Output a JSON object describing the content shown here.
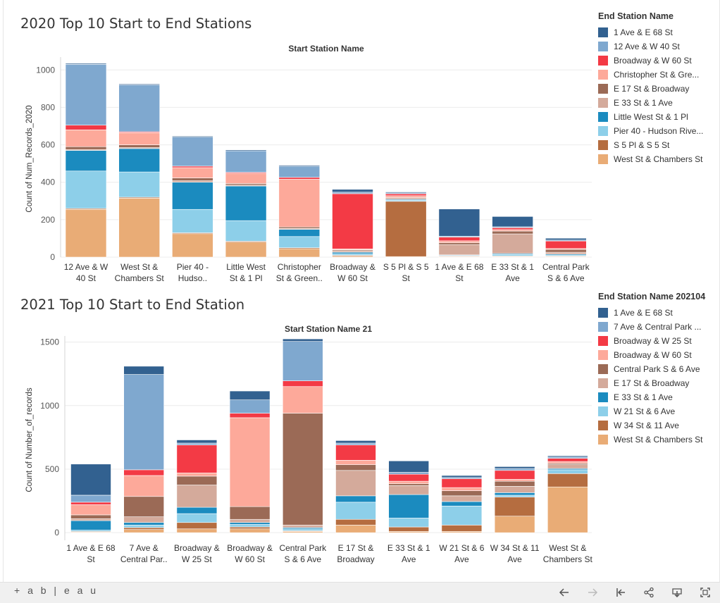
{
  "toolbar": {
    "logo_text": "+ a b | e a u",
    "back_icon": "arrow-left-icon",
    "forward_icon": "arrow-right-icon",
    "revert_icon": "revert-icon",
    "share_icon": "share-icon",
    "download_icon": "download-icon",
    "fullscreen_icon": "fullscreen-icon"
  },
  "charts": [
    {
      "title": "2020 Top 10 Start to End Stations",
      "legend_title": "End Station Name",
      "legend": [
        {
          "label": "1 Ave & E 68 St",
          "color": "#326190"
        },
        {
          "label": "12 Ave & W 40 St",
          "color": "#7fa8cf"
        },
        {
          "label": "Broadway & W 60 St",
          "color": "#f33a45"
        },
        {
          "label": "Christopher St & Gre...",
          "color": "#fda99a"
        },
        {
          "label": "E 17 St & Broadway",
          "color": "#9b6a56"
        },
        {
          "label": "E 33 St & 1 Ave",
          "color": "#d4aa9b"
        },
        {
          "label": "Little West St & 1 Pl",
          "color": "#1b8bbf"
        },
        {
          "label": "Pier 40 - Hudson Rive...",
          "color": "#8dcfe9"
        },
        {
          "label": "S 5 Pl & S 5 St",
          "color": "#b56d40"
        },
        {
          "label": "West St & Chambers St",
          "color": "#e9ac76"
        }
      ]
    },
    {
      "title": "2021 Top 10 Start to End Station",
      "legend_title": "End Station Name 202104",
      "legend": [
        {
          "label": "1 Ave & E 68 St",
          "color": "#326190"
        },
        {
          "label": "7 Ave & Central Park ...",
          "color": "#7fa8cf"
        },
        {
          "label": "Broadway & W 25 St",
          "color": "#f33a45"
        },
        {
          "label": "Broadway & W 60 St",
          "color": "#fda99a"
        },
        {
          "label": "Central Park S & 6 Ave",
          "color": "#9b6a56"
        },
        {
          "label": "E 17 St & Broadway",
          "color": "#d4aa9b"
        },
        {
          "label": "E 33 St & 1 Ave",
          "color": "#1b8bbf"
        },
        {
          "label": "W 21 St & 6 Ave",
          "color": "#8dcfe9"
        },
        {
          "label": "W 34 St & 11 Ave",
          "color": "#b56d40"
        },
        {
          "label": "West St & Chambers St",
          "color": "#e9ac76"
        }
      ]
    }
  ],
  "chart_data": [
    {
      "type": "bar",
      "stacked": true,
      "title": "2020 Top 10 Start to End Stations",
      "xlabel": "Start Station Name",
      "ylabel": "Count of Num_Records_2020",
      "ylim": [
        0,
        1050
      ],
      "yticks": [
        0,
        200,
        400,
        600,
        800,
        1000
      ],
      "categories": [
        [
          "12 Ave & W",
          "40 St"
        ],
        [
          "West St &",
          "Chambers St"
        ],
        [
          "Pier 40 -",
          "Hudso.."
        ],
        [
          "Little West",
          "St & 1 Pl"
        ],
        [
          "Christopher",
          "St & Green.."
        ],
        [
          "Broadway &",
          "W 60 St"
        ],
        [
          "S 5 Pl & S 5",
          "St"
        ],
        [
          "1 Ave & E 68",
          "St"
        ],
        [
          "E 33 St & 1",
          "Ave"
        ],
        [
          "Central Park",
          "S & 6 Ave"
        ]
      ],
      "stack_order": [
        "West St & Chambers St",
        "S 5 Pl & S 5 St",
        "Pier 40 - Hudson Rive...",
        "Little West St & 1 Pl",
        "E 33 St & 1 Ave",
        "E 17 St & Broadway",
        "Christopher St & Gre...",
        "Broadway & W 60 St",
        "12 Ave & W 40 St",
        "1 Ave & E 68 St"
      ],
      "colors": [
        "#e9ac76",
        "#b56d40",
        "#8dcfe9",
        "#1b8bbf",
        "#d4aa9b",
        "#9b6a56",
        "#fda99a",
        "#f33a45",
        "#7fa8cf",
        "#326190"
      ],
      "series": [
        {
          "name": "West St & Chambers St",
          "values": [
            255,
            315,
            125,
            80,
            45,
            5,
            3,
            3,
            3,
            3
          ]
        },
        {
          "name": "S 5 Pl & S 5 St",
          "values": [
            5,
            5,
            5,
            5,
            5,
            5,
            295,
            3,
            3,
            3
          ]
        },
        {
          "name": "Pier 40 - Hudson Rive...",
          "values": [
            200,
            135,
            125,
            110,
            60,
            8,
            5,
            3,
            8,
            5
          ]
        },
        {
          "name": "Little West St & 1 Pl",
          "values": [
            110,
            125,
            145,
            185,
            38,
            8,
            5,
            3,
            5,
            5
          ]
        },
        {
          "name": "E 33 St & 1 Ave",
          "values": [
            5,
            5,
            8,
            5,
            5,
            8,
            5,
            55,
            105,
            10
          ]
        },
        {
          "name": "E 17 St & Broadway",
          "values": [
            15,
            15,
            15,
            8,
            8,
            5,
            5,
            10,
            15,
            15
          ]
        },
        {
          "name": "Christopher St & Gre...",
          "values": [
            90,
            65,
            55,
            55,
            255,
            5,
            10,
            10,
            8,
            5
          ]
        },
        {
          "name": "Broadway & W 60 St",
          "values": [
            25,
            5,
            8,
            5,
            10,
            295,
            10,
            20,
            10,
            40
          ]
        },
        {
          "name": "12 Ave & W 40 St",
          "values": [
            325,
            250,
            155,
            115,
            60,
            8,
            5,
            5,
            5,
            5
          ]
        },
        {
          "name": "1 Ave & E 68 St",
          "values": [
            5,
            5,
            5,
            5,
            5,
            15,
            5,
            145,
            55,
            10
          ]
        }
      ]
    },
    {
      "type": "bar",
      "stacked": true,
      "title": "2021 Top 10 Start to End Station",
      "xlabel": "Start Station Name 21",
      "ylabel": "Count of Number_of_records",
      "ylim": [
        -60,
        1520
      ],
      "yticks": [
        0,
        500,
        1000,
        1500
      ],
      "categories": [
        [
          "1 Ave & E 68",
          "St"
        ],
        [
          "7 Ave &",
          "Central Par.."
        ],
        [
          "Broadway &",
          "W 25 St"
        ],
        [
          "Broadway &",
          "W 60 St"
        ],
        [
          "Central Park",
          "S & 6 Ave"
        ],
        [
          "E 17 St &",
          "Broadway"
        ],
        [
          "E 33 St & 1",
          "Ave"
        ],
        [
          "W 21 St & 6",
          "Ave"
        ],
        [
          "W 34 St & 11",
          "Ave"
        ],
        [
          "West St &",
          "Chambers St"
        ]
      ],
      "stack_order": [
        "West St & Chambers St",
        "W 34 St & 11 Ave",
        "W 21 St & 6 Ave",
        "E 33 St & 1 Ave",
        "E 17 St & Broadway",
        "Central Park S & 6 Ave",
        "Broadway & W 60 St",
        "Broadway & W 25 St",
        "7 Ave & Central Park ...",
        "1 Ave & E 68 St"
      ],
      "colors": [
        "#e9ac76",
        "#b56d40",
        "#8dcfe9",
        "#1b8bbf",
        "#d4aa9b",
        "#9b6a56",
        "#fda99a",
        "#f33a45",
        "#7fa8cf",
        "#326190"
      ],
      "series": [
        {
          "name": "West St & Chambers St",
          "values": [
            5,
            25,
            30,
            30,
            10,
            60,
            10,
            10,
            130,
            360
          ]
        },
        {
          "name": "W 34 St & 11 Ave",
          "values": [
            5,
            15,
            50,
            15,
            5,
            45,
            35,
            50,
            150,
            105
          ]
        },
        {
          "name": "W 21 St & 6 Ave",
          "values": [
            10,
            20,
            70,
            20,
            15,
            135,
            70,
            150,
            15,
            30
          ]
        },
        {
          "name": "E 33 St & 1 Ave",
          "values": [
            75,
            20,
            50,
            15,
            10,
            50,
            185,
            35,
            20,
            10
          ]
        },
        {
          "name": "E 17 St & Broadway",
          "values": [
            15,
            45,
            175,
            25,
            20,
            200,
            70,
            45,
            50,
            30
          ]
        },
        {
          "name": "Central Park S & 6 Ave",
          "values": [
            30,
            160,
            70,
            100,
            880,
            45,
            15,
            40,
            40,
            10
          ]
        },
        {
          "name": "Broadway & W 60 St",
          "values": [
            80,
            165,
            25,
            700,
            210,
            35,
            20,
            25,
            15,
            15
          ]
        },
        {
          "name": "Broadway & W 25 St",
          "values": [
            20,
            45,
            220,
            35,
            45,
            120,
            55,
            70,
            70,
            25
          ]
        },
        {
          "name": "7 Ave & Central Park ...",
          "values": [
            55,
            750,
            15,
            105,
            310,
            15,
            15,
            10,
            15,
            10
          ]
        },
        {
          "name": "1 Ave & E 68 St",
          "values": [
            245,
            65,
            25,
            70,
            20,
            20,
            90,
            15,
            15,
            10
          ]
        }
      ]
    }
  ]
}
